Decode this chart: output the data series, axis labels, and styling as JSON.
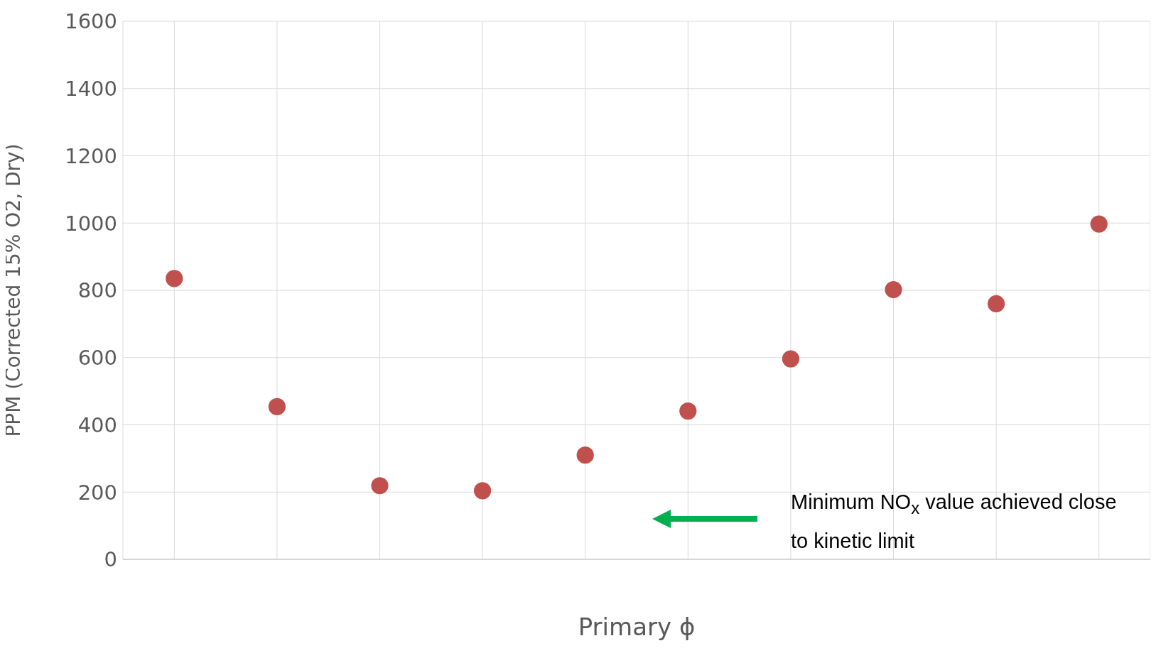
{
  "chart_data": {
    "type": "scatter",
    "xlabel": "Primary ϕ",
    "ylabel": "PPM (Corrected 15% O2, Dry)",
    "categories": [
      null,
      null,
      null,
      null,
      null,
      null,
      null,
      null,
      null,
      null
    ],
    "series": [
      {
        "color": "#c0504d",
        "values": [
          835,
          454,
          219,
          204,
          310,
          441,
          596,
          802,
          760,
          997
        ]
      }
    ],
    "ylim": [
      0,
      1600
    ],
    "yticks": [
      0,
      200,
      400,
      600,
      800,
      1000,
      1200,
      1400,
      1600
    ],
    "grid": true,
    "marker": "circle",
    "legend": false,
    "annotations": [
      "Minimum NO$_{x}$ value achieved close to kinetic limit"
    ]
  }
}
